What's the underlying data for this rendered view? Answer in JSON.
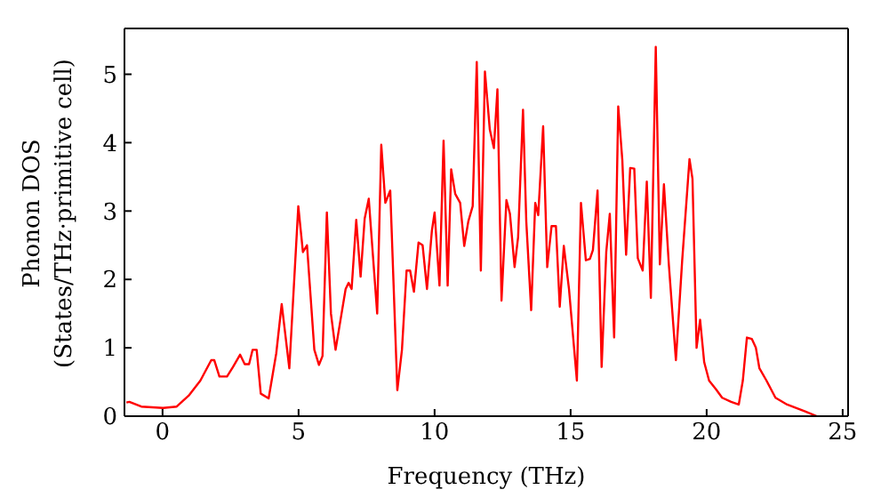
{
  "chart_data": {
    "type": "line",
    "xlabel": "Frequency (THz)",
    "ylabel": "Phonon DOS\n(States/THz·primitive cell)",
    "x": [
      -1.33,
      -1.22,
      -0.78,
      0.02,
      0.52,
      0.96,
      1.39,
      1.79,
      1.9,
      2.09,
      2.37,
      2.59,
      2.85,
      3.02,
      3.18,
      3.31,
      3.46,
      3.61,
      3.9,
      4.18,
      4.38,
      4.66,
      4.99,
      5.16,
      5.31,
      5.58,
      5.75,
      5.88,
      6.04,
      6.19,
      6.36,
      6.58,
      6.73,
      6.84,
      6.95,
      7.12,
      7.28,
      7.43,
      7.58,
      7.89,
      8.04,
      8.19,
      8.37,
      8.63,
      8.8,
      8.97,
      9.1,
      9.24,
      9.41,
      9.56,
      9.72,
      9.9,
      10.0,
      10.18,
      10.33,
      10.48,
      10.61,
      10.76,
      10.94,
      11.09,
      11.24,
      11.4,
      11.55,
      11.7,
      11.85,
      12.03,
      12.18,
      12.31,
      12.46,
      12.64,
      12.77,
      12.94,
      13.07,
      13.25,
      13.37,
      13.55,
      13.7,
      13.81,
      13.99,
      14.14,
      14.3,
      14.46,
      14.6,
      14.75,
      14.94,
      15.23,
      15.38,
      15.56,
      15.71,
      15.82,
      15.99,
      16.14,
      16.31,
      16.44,
      16.6,
      16.75,
      16.9,
      17.04,
      17.19,
      17.34,
      17.47,
      17.65,
      17.8,
      17.95,
      18.13,
      18.28,
      18.43,
      18.61,
      18.87,
      19.1,
      19.37,
      19.48,
      19.63,
      19.76,
      19.91,
      20.09,
      20.35,
      20.57,
      20.9,
      21.18,
      21.33,
      21.48,
      21.66,
      21.81,
      21.94,
      22.2,
      22.53,
      22.96,
      23.62,
      24.05
    ],
    "series": [
      {
        "color": "#ff0000",
        "values": [
          0.2,
          0.21,
          0.14,
          0.12,
          0.14,
          0.3,
          0.52,
          0.82,
          0.82,
          0.58,
          0.58,
          0.72,
          0.9,
          0.76,
          0.76,
          0.97,
          0.97,
          0.33,
          0.26,
          0.92,
          1.64,
          0.7,
          3.07,
          2.4,
          2.5,
          0.97,
          0.75,
          0.88,
          2.98,
          1.5,
          0.97,
          1.5,
          1.86,
          1.95,
          1.86,
          2.87,
          2.04,
          2.89,
          3.18,
          1.5,
          3.97,
          3.12,
          3.3,
          0.38,
          0.97,
          2.13,
          2.13,
          1.82,
          2.54,
          2.5,
          1.86,
          2.71,
          2.98,
          1.91,
          4.03,
          1.91,
          3.61,
          3.25,
          3.12,
          2.49,
          2.85,
          3.07,
          5.18,
          2.13,
          5.04,
          4.19,
          3.92,
          4.78,
          1.69,
          3.16,
          2.96,
          2.18,
          2.62,
          4.48,
          2.85,
          1.55,
          3.12,
          2.94,
          4.24,
          2.18,
          2.78,
          2.78,
          1.6,
          2.49,
          1.86,
          0.52,
          3.12,
          2.28,
          2.3,
          2.43,
          3.3,
          0.72,
          2.4,
          2.96,
          1.15,
          4.53,
          3.75,
          2.36,
          3.63,
          3.62,
          2.31,
          2.13,
          3.43,
          1.73,
          5.4,
          2.22,
          3.39,
          2.22,
          0.82,
          2.27,
          3.76,
          3.47,
          1.0,
          1.41,
          0.79,
          0.52,
          0.39,
          0.27,
          0.21,
          0.17,
          0.52,
          1.15,
          1.13,
          1.0,
          0.7,
          0.52,
          0.27,
          0.17,
          0.07,
          0
        ]
      }
    ],
    "xlim": [
      -1.4,
      25.2
    ],
    "xticks": [
      0,
      5,
      10,
      15,
      20,
      25
    ],
    "ylim": [
      0,
      5.67
    ],
    "yticks": [
      0,
      1,
      2,
      3,
      4,
      5
    ],
    "grid": false,
    "legend": false,
    "marker": "none",
    "line_style": "solid"
  }
}
